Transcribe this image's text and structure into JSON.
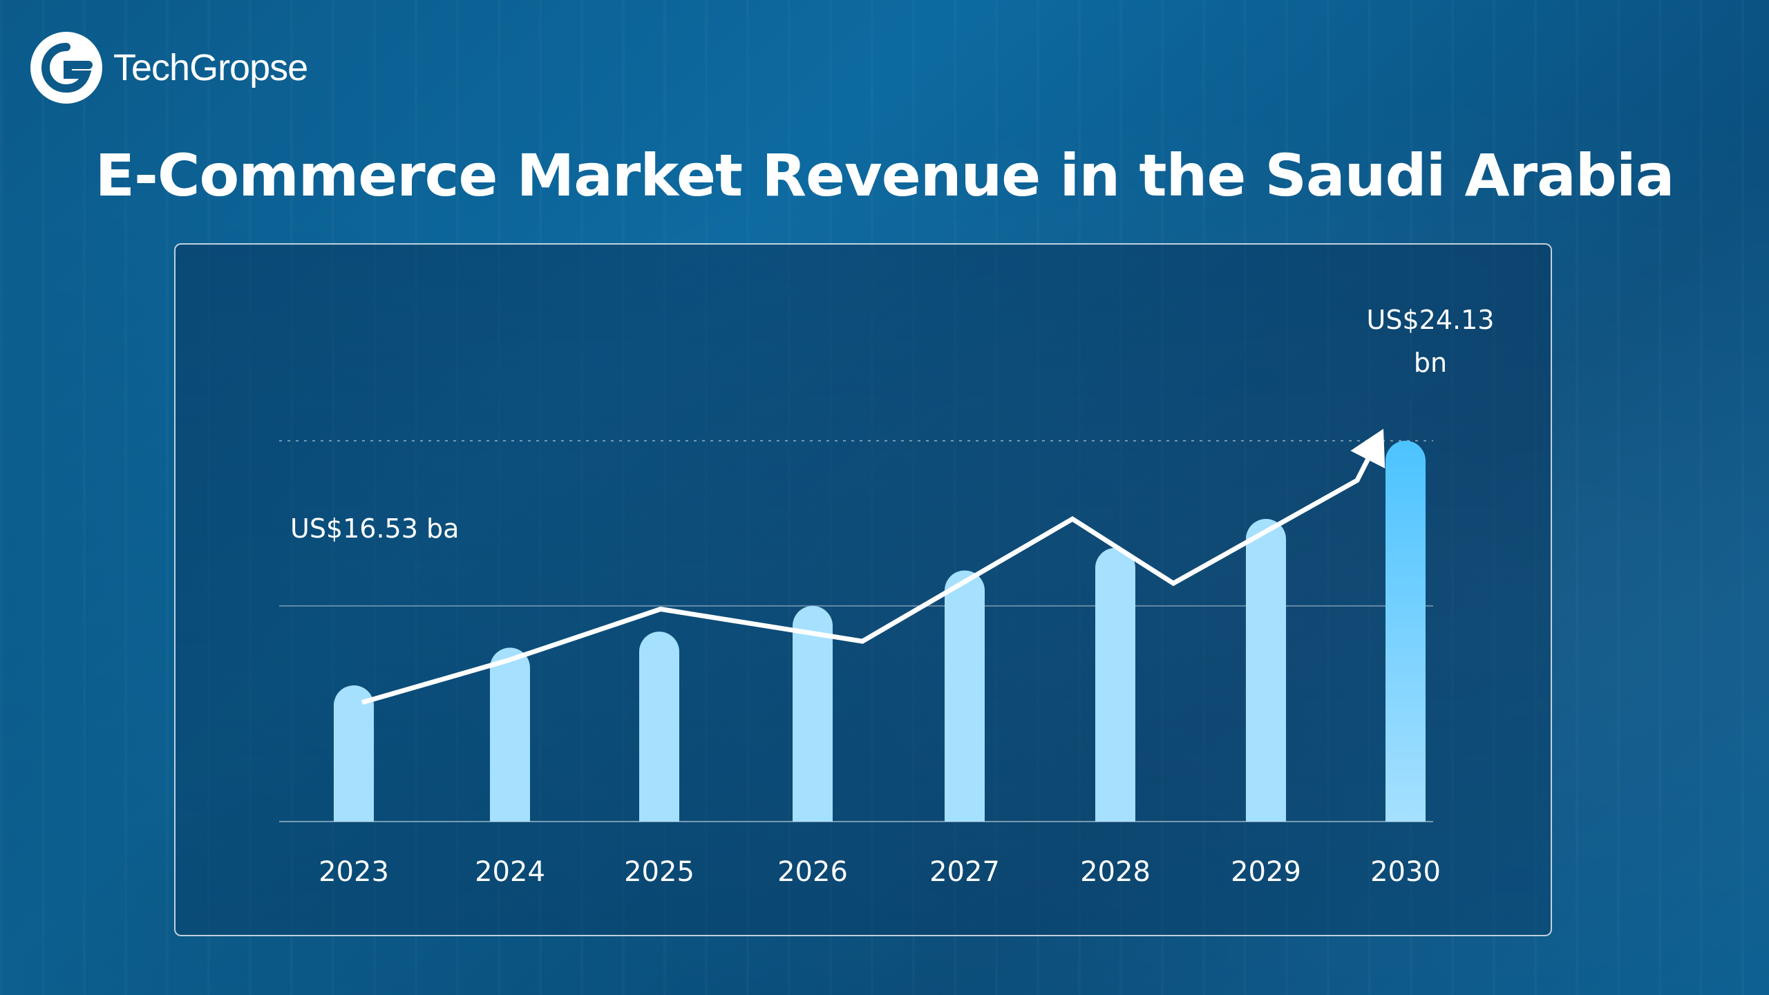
{
  "brand": {
    "name": "TechGropse",
    "logo_icon": "g-logo-icon"
  },
  "chart_data": {
    "type": "bar",
    "title": "E-Commerce Market Revenue in the Saudi Arabia",
    "categories": [
      "2023",
      "2024",
      "2025",
      "2026",
      "2027",
      "2028",
      "2029",
      "2030"
    ],
    "values": [
      16.53,
      17.7,
      18.2,
      19.0,
      20.1,
      20.8,
      21.7,
      24.13
    ],
    "line_values": [
      16.0,
      17.3,
      18.9,
      17.9,
      21.7,
      19.7,
      22.9,
      24.5
    ],
    "annotations": {
      "start_label": "US$16.53 ba",
      "end_label_line1": "US$24.13",
      "end_label_line2": "bn"
    },
    "reference_lines": [
      19.0,
      24.13
    ],
    "ylim": [
      12.3,
      25.5
    ],
    "xlabel": "",
    "ylabel": "",
    "grid": false,
    "colors": {
      "bar": "#a6e0ff",
      "bar_highlight_top": "#4cc3ff",
      "bar_highlight_bottom": "#a6e0ff",
      "line": "#ffffff"
    }
  }
}
